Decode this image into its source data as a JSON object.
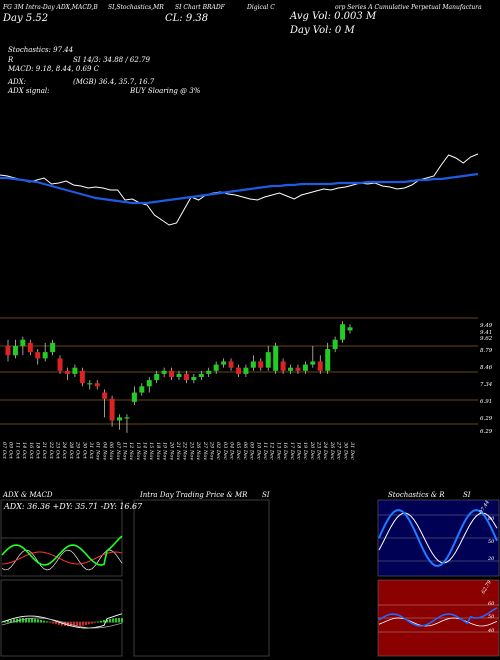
{
  "header": {
    "title_line1": "FG 3M Intra-Day ADX,MACD,B",
    "title_line2": "SI,Stochastics,MR",
    "title_line3": "SI Chart BRADF",
    "title_line4": "Digical C",
    "title_line5": "orp Series A Cumulative  Perpetual Manufactura",
    "day_label": "Day",
    "day_value": "5.52",
    "close_label": "CL:",
    "close_value": "9.38",
    "avg_vol_label": "Avg Vol:",
    "avg_vol_value": "0.003",
    "avg_vol_unit": "M",
    "day_vol_label": "Day Vol:",
    "day_vol_value": "0",
    "day_vol_unit": "M"
  },
  "stats": {
    "stochastics": "Stochastics: 97.44",
    "r_label": "R",
    "si_line": "SI 14/3: 34.88 / 62.79",
    "macd": "MACD: 9.18, 8.44, 0.69 C",
    "adx_label": "ADX:",
    "adx_value": "(MGB) 36.4, 35.7, 16.7",
    "adx_signal_label": "ADX  signal:",
    "adx_signal_value": "BUY Sloaring @ 3%"
  },
  "price_axis_labels": [
    "9.49",
    "9.41",
    "9.62",
    "8.79",
    "8.46",
    "7.34",
    "6.91",
    "6.29",
    "6.29"
  ],
  "date_labels": [
    "07 Oct",
    "09 Oct",
    "11 Oct",
    "14 Oct",
    "16 Oct",
    "18 Oct",
    "21 Oct",
    "22 Oct",
    "23 Oct",
    "24 Oct",
    "28 Oct",
    "29 Oct",
    "30 Oct",
    "31 Oct",
    "01 Nov",
    "04 Nov",
    "06 Nov",
    "07 Nov",
    "11 Nov",
    "12 Nov",
    "13 Nov",
    "14 Nov",
    "15 Nov",
    "18 Nov",
    "19 Nov",
    "20 Nov",
    "21 Nov",
    "22 Nov",
    "25 Nov",
    "26 Nov",
    "27 Nov",
    "29 Nov",
    "02 Dec",
    "03 Dec",
    "04 Dec",
    "05 Dec",
    "06 Dec",
    "09 Dec",
    "10 Dec",
    "11 Dec",
    "12 Dec",
    "13 Dec",
    "16 Dec",
    "17 Dec",
    "18 Dec",
    "19 Dec",
    "20 Dec",
    "23 Dec",
    "24 Dec",
    "26 Dec",
    "27 Dec",
    "30 Dec",
    "31 Dec"
  ],
  "panels": {
    "adx_title": "ADX  & MACD",
    "adx_readout": "ADX: 36.36  +DY: 35.71 -DY: 16.67",
    "intraday_title": "Intra  Day Trading Price  & MR",
    "intraday_suffix": "SI",
    "stoch_title": "Stochastics & R",
    "stoch_suffix": "SI",
    "stoch_levels": [
      "80",
      "50",
      "20"
    ],
    "rsi_levels": [
      "60",
      "50",
      "40"
    ],
    "stoch_corner": "97.44",
    "rsi_corner": "62.79"
  },
  "colors": {
    "bull": "#22cc22",
    "bear": "#dd2222",
    "ma": "#1f5ae0",
    "grid": "#8a5a1a",
    "rsi_bg": "#8b0000",
    "stoch_bg": "#000055"
  },
  "chart_data": [
    {
      "type": "line",
      "name_hint": "price",
      "price_line": [
        175,
        176,
        178,
        180,
        182,
        180,
        178,
        184,
        183,
        181,
        185,
        186,
        188,
        187,
        188,
        190,
        190,
        200,
        199,
        203,
        205,
        215,
        220,
        225,
        223,
        210,
        197,
        200,
        195,
        193,
        192,
        194,
        195,
        197,
        199,
        200,
        197,
        195,
        193,
        196,
        199,
        195,
        193,
        191,
        189,
        190,
        188,
        187,
        185,
        183,
        184,
        183,
        186,
        187,
        189,
        188,
        185,
        180,
        178,
        176,
        165,
        155,
        158,
        163,
        157,
        154
      ],
      "ma_line": [
        178,
        178,
        179,
        180,
        181,
        182,
        184,
        186,
        188,
        190,
        192,
        194,
        196,
        198,
        199,
        200,
        201,
        202,
        203,
        203,
        203,
        202,
        201,
        200,
        199,
        198,
        197,
        196,
        195,
        194,
        193,
        192,
        191,
        190,
        189,
        188,
        187,
        186,
        186,
        185,
        185,
        184,
        184,
        184,
        184,
        184,
        183,
        183,
        183,
        183,
        182,
        182,
        182,
        182,
        182,
        182,
        181,
        180,
        180,
        179,
        179,
        178,
        177,
        176,
        175,
        174
      ]
    },
    {
      "type": "bar",
      "name_hint": "candles",
      "candles": [
        {
          "o": 8.8,
          "c": 8.5,
          "h": 9.0,
          "l": 8.3
        },
        {
          "o": 8.5,
          "c": 8.8,
          "h": 9.0,
          "l": 8.4
        },
        {
          "o": 8.8,
          "c": 9.0,
          "h": 9.1,
          "l": 8.5
        },
        {
          "o": 8.9,
          "c": 8.6,
          "h": 9.0,
          "l": 8.5
        },
        {
          "o": 8.6,
          "c": 8.4,
          "h": 8.7,
          "l": 8.2
        },
        {
          "o": 8.4,
          "c": 8.6,
          "h": 8.9,
          "l": 8.3
        },
        {
          "o": 8.6,
          "c": 8.9,
          "h": 9.0,
          "l": 8.5
        },
        {
          "o": 8.4,
          "c": 8.0,
          "h": 8.5,
          "l": 7.9
        },
        {
          "o": 8.0,
          "c": 7.9,
          "h": 8.1,
          "l": 7.7
        },
        {
          "o": 7.9,
          "c": 8.1,
          "h": 8.2,
          "l": 7.8
        },
        {
          "o": 8.0,
          "c": 7.6,
          "h": 8.1,
          "l": 7.5
        },
        {
          "o": 7.6,
          "c": 7.6,
          "h": 7.7,
          "l": 7.4
        },
        {
          "o": 7.6,
          "c": 7.5,
          "h": 7.7,
          "l": 7.4
        },
        {
          "o": 7.3,
          "c": 7.1,
          "h": 7.4,
          "l": 6.5
        },
        {
          "o": 7.1,
          "c": 6.4,
          "h": 7.2,
          "l": 6.2
        },
        {
          "o": 6.4,
          "c": 6.5,
          "h": 6.6,
          "l": 6.1
        },
        {
          "o": 6.5,
          "c": 6.5,
          "h": 6.6,
          "l": 6.0
        },
        {
          "o": 7.0,
          "c": 7.3,
          "h": 7.5,
          "l": 6.9
        },
        {
          "o": 7.3,
          "c": 7.5,
          "h": 7.6,
          "l": 7.2
        },
        {
          "o": 7.5,
          "c": 7.7,
          "h": 7.8,
          "l": 7.3
        },
        {
          "o": 7.7,
          "c": 7.9,
          "h": 8.0,
          "l": 7.6
        },
        {
          "o": 7.9,
          "c": 8.0,
          "h": 8.1,
          "l": 7.8
        },
        {
          "o": 8.0,
          "c": 7.8,
          "h": 8.1,
          "l": 7.7
        },
        {
          "o": 7.8,
          "c": 7.9,
          "h": 8.0,
          "l": 7.7
        },
        {
          "o": 7.9,
          "c": 7.7,
          "h": 8.0,
          "l": 7.6
        },
        {
          "o": 7.7,
          "c": 7.8,
          "h": 7.9,
          "l": 7.6
        },
        {
          "o": 7.8,
          "c": 7.9,
          "h": 8.0,
          "l": 7.7
        },
        {
          "o": 7.9,
          "c": 8.0,
          "h": 8.1,
          "l": 7.8
        },
        {
          "o": 8.0,
          "c": 8.2,
          "h": 8.3,
          "l": 7.9
        },
        {
          "o": 8.2,
          "c": 8.3,
          "h": 8.4,
          "l": 8.1
        },
        {
          "o": 8.3,
          "c": 8.1,
          "h": 8.4,
          "l": 8.0
        },
        {
          "o": 8.1,
          "c": 7.9,
          "h": 8.2,
          "l": 7.8
        },
        {
          "o": 7.9,
          "c": 8.1,
          "h": 8.2,
          "l": 7.8
        },
        {
          "o": 8.1,
          "c": 8.3,
          "h": 8.5,
          "l": 8.0
        },
        {
          "o": 8.3,
          "c": 8.1,
          "h": 8.4,
          "l": 8.0
        },
        {
          "o": 8.1,
          "c": 8.6,
          "h": 8.8,
          "l": 8.0
        },
        {
          "o": 8.0,
          "c": 8.8,
          "h": 8.9,
          "l": 7.9
        },
        {
          "o": 8.3,
          "c": 8.0,
          "h": 8.4,
          "l": 7.9
        },
        {
          "o": 8.0,
          "c": 8.1,
          "h": 8.2,
          "l": 7.9
        },
        {
          "o": 8.1,
          "c": 8.0,
          "h": 8.2,
          "l": 7.9
        },
        {
          "o": 8.0,
          "c": 8.2,
          "h": 8.3,
          "l": 7.9
        },
        {
          "o": 8.2,
          "c": 8.3,
          "h": 8.8,
          "l": 8.1
        },
        {
          "o": 8.3,
          "c": 8.0,
          "h": 8.5,
          "l": 7.9
        },
        {
          "o": 8.0,
          "c": 8.7,
          "h": 8.9,
          "l": 7.9
        },
        {
          "o": 8.7,
          "c": 9.0,
          "h": 9.1,
          "l": 8.6
        },
        {
          "o": 9.0,
          "c": 9.5,
          "h": 9.6,
          "l": 8.9
        },
        {
          "o": 9.3,
          "c": 9.4,
          "h": 9.5,
          "l": 9.2
        }
      ]
    }
  ]
}
